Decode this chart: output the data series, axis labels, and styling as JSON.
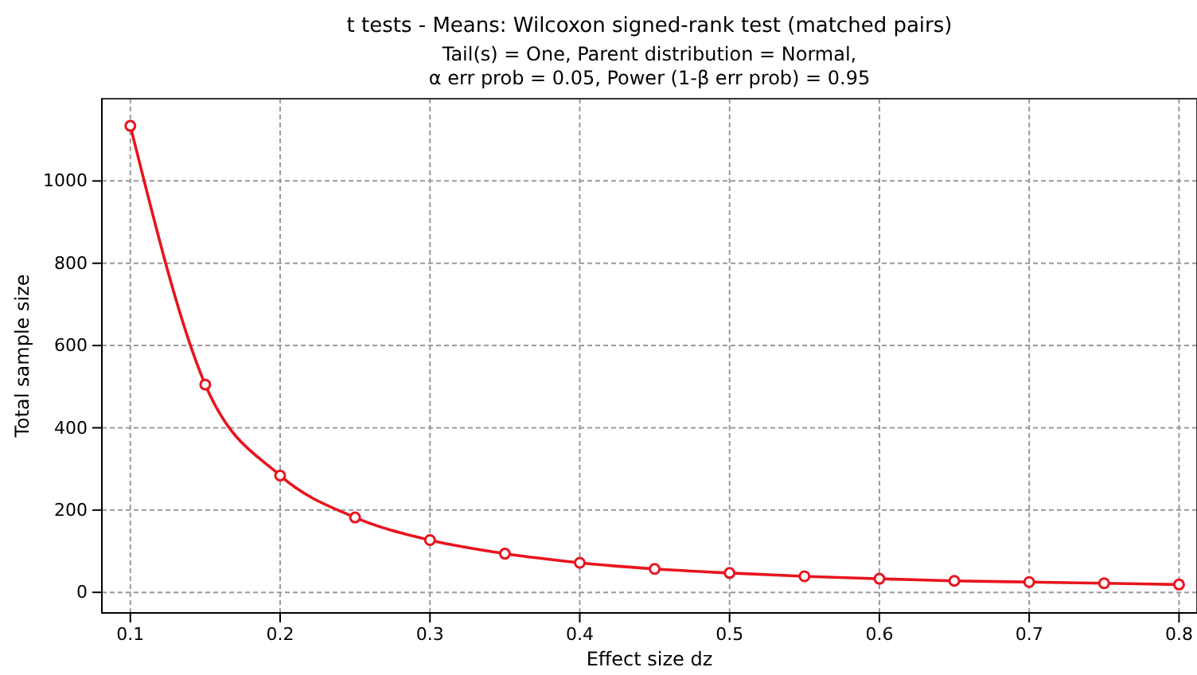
{
  "chart_data": {
    "type": "line",
    "title": "t tests - Means: Wilcoxon signed-rank test (matched pairs)",
    "subtitle": "Tail(s) = One, Parent distribution = Normal,\nα err prob = 0.05, Power (1-β err prob) = 0.95",
    "xlabel": "Effect size dz",
    "ylabel": "Total sample size",
    "x": [
      0.1,
      0.15,
      0.2,
      0.25,
      0.3,
      0.35,
      0.4,
      0.45,
      0.5,
      0.55,
      0.6,
      0.65,
      0.7,
      0.75,
      0.8
    ],
    "series": [
      {
        "color": "#e8141e",
        "values": [
          1134,
          505,
          284,
          182,
          127,
          94,
          72,
          57,
          47,
          39,
          33,
          28,
          25,
          22,
          19
        ]
      }
    ],
    "xlim": [
      0.081,
      0.812
    ],
    "ylim": [
      -50,
      1200
    ],
    "xticks": [
      0.1,
      0.2,
      0.3,
      0.4,
      0.5,
      0.6,
      0.7,
      0.8
    ],
    "yticks": [
      0,
      200,
      400,
      600,
      800,
      1000
    ],
    "grid": true,
    "marker": "circle",
    "line_style": "solid"
  }
}
